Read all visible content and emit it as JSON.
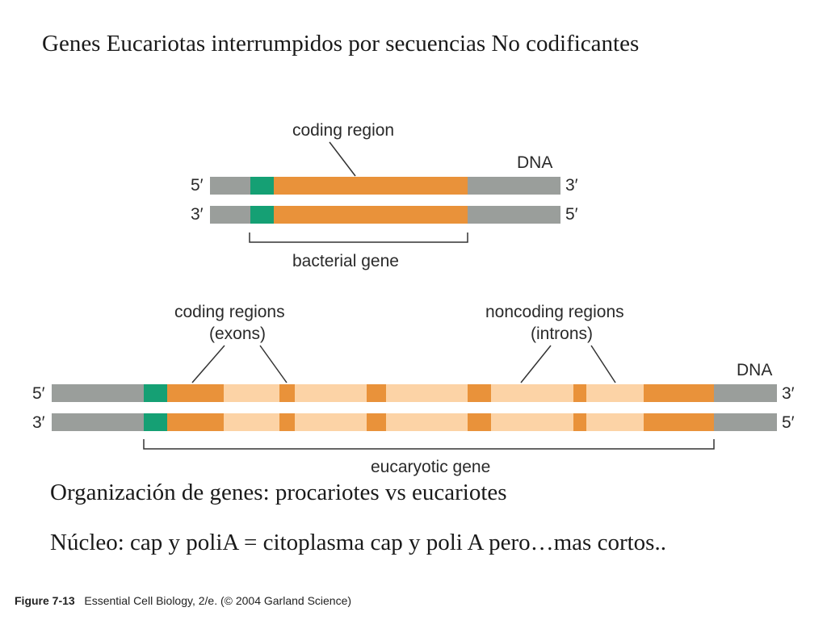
{
  "slide": {
    "title": "Genes Eucariotas interrumpidos por secuencias No codificantes",
    "line1": "Organización de genes: procariotes vs eucariotes",
    "line2": "Núcleo: cap y poliA = citoplasma cap y poli A pero…mas cortos.."
  },
  "bacterial": {
    "coding_label": "coding region",
    "dna_label": "DNA",
    "top_left": "5′",
    "top_right": "3′",
    "bottom_left": "3′",
    "bottom_right": "5′",
    "gene_label": "bacterial gene"
  },
  "eukaryotic": {
    "exons_label_1": "coding regions",
    "exons_label_2": "(exons)",
    "introns_label_1": "noncoding regions",
    "introns_label_2": "(introns)",
    "dna_label": "DNA",
    "top_left": "5′",
    "top_right": "3′",
    "bottom_left": "3′",
    "bottom_right": "5′",
    "gene_label": "eucaryotic gene"
  },
  "caption": {
    "figure": "Figure 7-13",
    "text": "Essential Cell Biology, 2/e. (© 2004 Garland Science)"
  },
  "colors": {
    "flank": "#9a9e9b",
    "promoter": "#15a074",
    "exon": "#e9923a",
    "intron": "#fcd3a6",
    "line": "#333333"
  }
}
